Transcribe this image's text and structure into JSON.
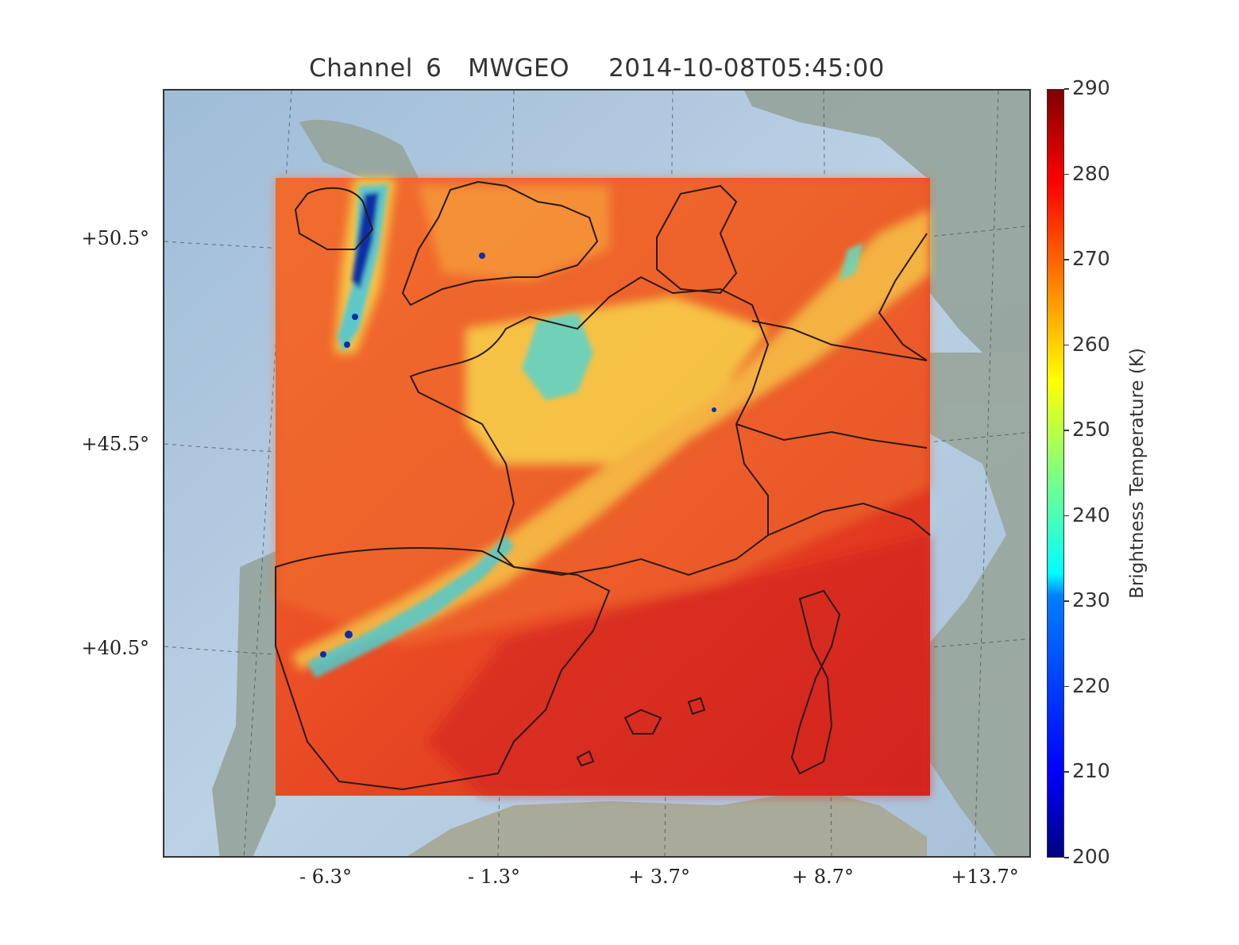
{
  "title": "Channel 6  MWGEO   2014-10-08T05:45:00",
  "latitude_labels": [
    "+50.5°",
    "+45.5°",
    "+40.5°"
  ],
  "longitude_labels": [
    "- 6.3°",
    "- 1.3°",
    "+ 3.7°",
    "+ 8.7°",
    "+13.7°"
  ],
  "colorbar": {
    "label": "Brightness Temperature (K)",
    "ticks": [
      "290",
      "280",
      "270",
      "260",
      "250",
      "240",
      "230",
      "220",
      "210",
      "200"
    ],
    "min": 200,
    "max": 290,
    "colormap": "jet"
  },
  "colors": {
    "sea": "#b4cbe0",
    "land": "#95a49d",
    "field_base": "#e33a22",
    "field_warm": "#ee5a28",
    "field_cold": "#f6cd44",
    "field_coldest": "#0b2c9a",
    "coastline": "#2a1a14"
  }
}
